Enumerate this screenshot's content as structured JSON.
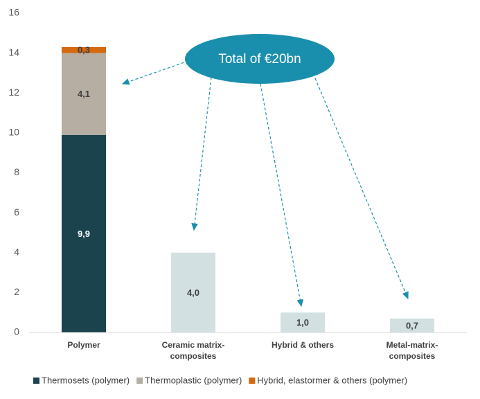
{
  "chart_data": {
    "type": "stacked_bar",
    "categories": [
      "Polymer",
      "Ceramic matrix-composites",
      "Hybrid & others",
      "Metal-matrix-composites"
    ],
    "series": [
      {
        "name": "Thermosets (polymer)",
        "color": "#1a434e",
        "values": [
          9.9,
          null,
          null,
          null
        ],
        "value_labels": [
          "9,9",
          null,
          null,
          null
        ]
      },
      {
        "name": "Thermoplastic (polymer)",
        "color": "#b6aea3",
        "values": [
          4.1,
          null,
          null,
          null
        ],
        "value_labels": [
          "4,1",
          null,
          null,
          null
        ]
      },
      {
        "name": "Hybrid, elastormer & others (polymer)",
        "color": "#d4690f",
        "values": [
          0.3,
          null,
          null,
          null
        ],
        "value_labels": [
          "0,3",
          null,
          null,
          null
        ]
      },
      {
        "color": "#d2e0e1",
        "values": [
          null,
          4.0,
          1.0,
          0.7
        ],
        "value_labels": [
          null,
          "4,0",
          "1,0",
          "0,7"
        ]
      }
    ],
    "ylim": [
      0,
      16
    ],
    "yticks": [
      0,
      2,
      4,
      6,
      8,
      10,
      12,
      14,
      16
    ],
    "grid": false,
    "annotation": "Total of €20bn",
    "legend": "bottom"
  }
}
